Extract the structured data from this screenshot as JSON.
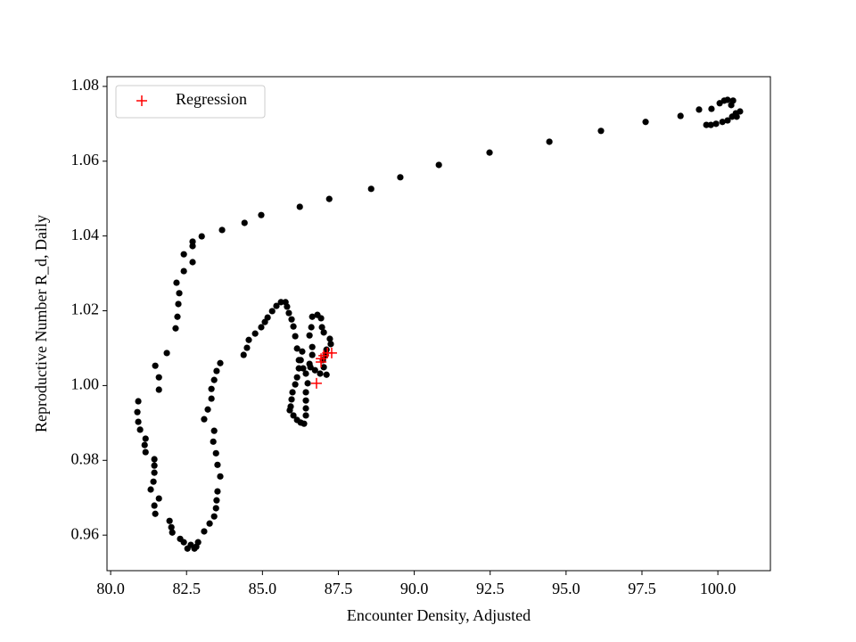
{
  "chart_data": {
    "type": "scatter",
    "xlabel": "Encounter Density, Adjusted",
    "ylabel": "Reproductive Number R_d, Daily",
    "xlim": [
      79.88,
      101.73
    ],
    "ylim": [
      0.9505,
      1.0826
    ],
    "xticks": [
      {
        "value": 80,
        "label": "80.0"
      },
      82.5,
      {
        "value": 85,
        "label": "85.0"
      },
      87.5,
      {
        "value": 90,
        "label": "90.0"
      },
      92.5,
      {
        "value": 95,
        "label": "95.0"
      },
      97.5,
      {
        "value": 100,
        "label": "100.0"
      }
    ],
    "yticks": [
      0.96,
      0.98,
      {
        "value": 1.0,
        "label": "1.00"
      },
      1.02,
      1.04,
      1.06,
      1.08
    ],
    "grid": false,
    "legend": "upper left",
    "series": [
      {
        "color": "#000000",
        "marker": "o",
        "x": [
          100.73,
          100.62,
          100.44,
          100.5,
          100.32,
          100.21,
          100.06,
          99.79,
          99.62,
          99.77,
          99.94,
          100.15,
          100.32,
          100.47,
          100.59,
          99.38,
          98.77,
          97.62,
          96.15,
          94.45,
          92.48,
          90.81,
          89.54,
          88.58,
          87.2,
          86.23,
          84.96,
          84.41,
          83.67,
          83.0,
          82.7,
          82.7,
          82.7,
          82.41,
          82.41,
          82.17,
          82.26,
          82.23,
          82.2,
          82.14,
          81.85,
          81.47,
          81.59,
          81.59,
          80.91,
          80.88,
          80.91,
          80.97,
          81.15,
          81.12,
          81.15,
          81.44,
          81.44,
          81.44,
          81.41,
          81.32,
          81.59,
          81.44,
          81.47,
          81.94,
          82.0,
          82.03,
          82.29,
          82.41,
          82.53,
          82.64,
          82.76,
          82.88,
          82.82,
          83.08,
          83.26,
          83.41,
          83.47,
          83.49,
          83.52,
          83.61,
          83.52,
          83.47,
          83.38,
          83.41,
          83.08,
          83.2,
          83.32,
          83.32,
          83.41,
          83.49,
          83.61,
          84.38,
          84.49,
          84.55,
          84.76,
          84.96,
          85.08,
          85.17,
          85.32,
          85.46,
          85.61,
          85.76,
          85.81,
          85.87,
          85.96,
          86.02,
          86.08,
          86.14,
          86.2,
          86.2,
          86.14,
          86.08,
          85.99,
          85.96,
          85.93,
          85.9,
          86.02,
          86.14,
          86.26,
          86.37,
          86.43,
          86.43,
          86.43,
          86.43,
          86.49,
          86.43,
          86.55,
          86.64,
          86.64,
          86.55,
          86.61,
          86.64,
          86.81,
          86.93,
          86.96,
          87.02,
          87.22,
          87.25,
          87.11,
          87.08,
          86.99,
          87.02,
          87.11,
          86.9,
          86.73,
          86.58,
          86.34,
          86.26,
          86.31
        ],
        "values": [
          1.0733,
          1.0719,
          1.075,
          1.0762,
          1.0764,
          1.0762,
          1.0755,
          1.074,
          1.0697,
          1.0697,
          1.07,
          1.0705,
          1.0709,
          1.0719,
          1.0728,
          1.0738,
          1.0721,
          1.0705,
          1.0681,
          1.0652,
          1.0623,
          1.059,
          1.0557,
          1.0526,
          1.0499,
          1.0478,
          1.0456,
          1.0435,
          1.0416,
          1.0399,
          1.0385,
          1.0373,
          1.033,
          1.0351,
          1.0306,
          1.0275,
          1.0247,
          1.0218,
          1.0184,
          1.0153,
          1.0087,
          1.0053,
          1.0022,
          0.9989,
          0.9958,
          0.9929,
          0.9903,
          0.9882,
          0.9858,
          0.9841,
          0.9822,
          0.9803,
          0.9786,
          0.9767,
          0.9743,
          0.9722,
          0.9698,
          0.9679,
          0.9657,
          0.9638,
          0.9621,
          0.9607,
          0.959,
          0.9581,
          0.9564,
          0.9574,
          0.9564,
          0.9581,
          0.9569,
          0.961,
          0.9631,
          0.965,
          0.9672,
          0.9693,
          0.9717,
          0.9757,
          0.9788,
          0.9819,
          0.985,
          0.9879,
          0.991,
          0.9936,
          0.9965,
          0.9991,
          1.0015,
          1.0039,
          1.006,
          1.0082,
          1.0101,
          1.0122,
          1.0139,
          1.0156,
          1.017,
          1.0182,
          1.0199,
          1.0213,
          1.0223,
          1.0223,
          1.0211,
          1.0194,
          1.0177,
          1.0158,
          1.0132,
          1.0099,
          1.0068,
          1.0046,
          1.0022,
          1.0003,
          0.9982,
          0.9963,
          0.9944,
          0.9934,
          0.992,
          0.9908,
          0.9901,
          0.9898,
          0.992,
          0.9939,
          0.996,
          0.9982,
          1.0006,
          1.0032,
          1.0058,
          1.0082,
          1.0103,
          1.0134,
          1.0156,
          1.0184,
          1.0189,
          1.018,
          1.0156,
          1.0142,
          1.0125,
          1.0111,
          1.0096,
          1.0082,
          1.0068,
          1.0049,
          1.0029,
          1.0032,
          1.0041,
          1.0049,
          1.0046,
          1.0068,
          1.0091
        ]
      },
      {
        "name": "Regression",
        "color": "#ff0000",
        "marker": "+",
        "x": [
          86.78,
          86.93,
          86.93,
          87.02,
          87.14,
          87.28
        ],
        "values": [
          1.0006,
          1.0063,
          1.0072,
          1.008,
          1.0087,
          1.0087
        ]
      }
    ]
  }
}
